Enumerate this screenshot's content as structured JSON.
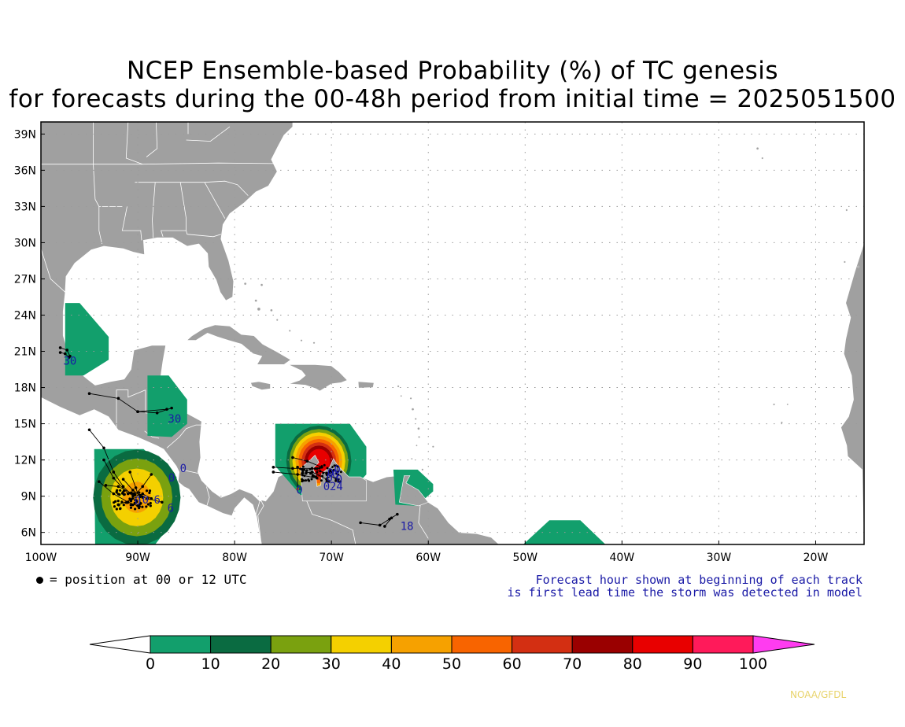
{
  "title": {
    "line1": "NCEP Ensemble-based Probability (%) of TC genesis",
    "line2": "for forecasts during the 00-48h period from initial time = 2025051500"
  },
  "map": {
    "lon_range": [
      -100,
      -15
    ],
    "lat_range": [
      5,
      40
    ],
    "lat_ticks": [
      {
        "value": 39,
        "label": "39N"
      },
      {
        "value": 36,
        "label": "36N"
      },
      {
        "value": 33,
        "label": "33N"
      },
      {
        "value": 30,
        "label": "30N"
      },
      {
        "value": 27,
        "label": "27N"
      },
      {
        "value": 24,
        "label": "24N"
      },
      {
        "value": 21,
        "label": "21N"
      },
      {
        "value": 18,
        "label": "18N"
      },
      {
        "value": 15,
        "label": "15N"
      },
      {
        "value": 12,
        "label": "12N"
      },
      {
        "value": 9,
        "label": "9N"
      },
      {
        "value": 6,
        "label": "6N"
      }
    ],
    "lon_ticks": [
      {
        "value": -100,
        "label": "100W"
      },
      {
        "value": -90,
        "label": "90W"
      },
      {
        "value": -80,
        "label": "80W"
      },
      {
        "value": -70,
        "label": "70W"
      },
      {
        "value": -60,
        "label": "60W"
      },
      {
        "value": -50,
        "label": "50W"
      },
      {
        "value": -40,
        "label": "40W"
      },
      {
        "value": -30,
        "label": "30W"
      },
      {
        "value": -20,
        "label": "20W"
      }
    ],
    "grid": "dotted",
    "land_color": "#a0a0a0",
    "ocean_color": "#ffffff",
    "probability_regions": [
      {
        "name": "western-caribbean-gulf",
        "center": [
          -90.1,
          8.9
        ],
        "levels": [
          10,
          20,
          30,
          40,
          50
        ]
      },
      {
        "name": "gulf-of-mexico-west",
        "center": [
          -96.5,
          21.5
        ],
        "levels": [
          10
        ]
      },
      {
        "name": "northwest-caribbean",
        "center": [
          -87.5,
          16.5
        ],
        "levels": [
          10
        ]
      },
      {
        "name": "south-caribbean",
        "center": [
          -71.5,
          11.8
        ],
        "levels": [
          10,
          20,
          30,
          40,
          50,
          60,
          70,
          80,
          90
        ]
      },
      {
        "name": "windward-islands",
        "center": [
          -62.5,
          10.2
        ],
        "levels": [
          10
        ]
      },
      {
        "name": "central-atlantic",
        "center": [
          -45.5,
          5.8
        ],
        "levels": [
          10
        ]
      }
    ],
    "track_labels": [
      {
        "text": "30",
        "lon": -97.0,
        "lat": 19.9
      },
      {
        "text": "30",
        "lon": -86.2,
        "lat": 15.1
      },
      {
        "text": "0",
        "lon": -85.3,
        "lat": 11.0
      },
      {
        "text": "0",
        "lon": -86.5,
        "lat": 10.2
      },
      {
        "text": "6",
        "lon": -88.0,
        "lat": 8.4
      },
      {
        "text": "6",
        "lon": -86.6,
        "lat": 7.7
      },
      {
        "text": "0",
        "lon": -73.3,
        "lat": 9.2
      },
      {
        "text": "0",
        "lon": -70.5,
        "lat": 9.5
      },
      {
        "text": "24",
        "lon": -69.5,
        "lat": 9.5
      },
      {
        "text": "18",
        "lon": -62.2,
        "lat": 6.2
      }
    ]
  },
  "legend": {
    "marker_text": "= position at 00 or 12 UTC",
    "note_line1": "Forecast hour shown at beginning of each track",
    "note_line2": "is first lead time the storm was detected in model"
  },
  "colorbar": {
    "labels": [
      "0",
      "10",
      "20",
      "30",
      "40",
      "50",
      "60",
      "70",
      "80",
      "90",
      "100"
    ],
    "colors": [
      "#ffffff",
      "#129f6c",
      "#0a6b41",
      "#7aa10f",
      "#f4d000",
      "#f6a100",
      "#f86400",
      "#d32f12",
      "#9a0000",
      "#e80000",
      "#ff1a5a",
      "#ff3cf0"
    ]
  },
  "credit": "NOAA/GFDL"
}
